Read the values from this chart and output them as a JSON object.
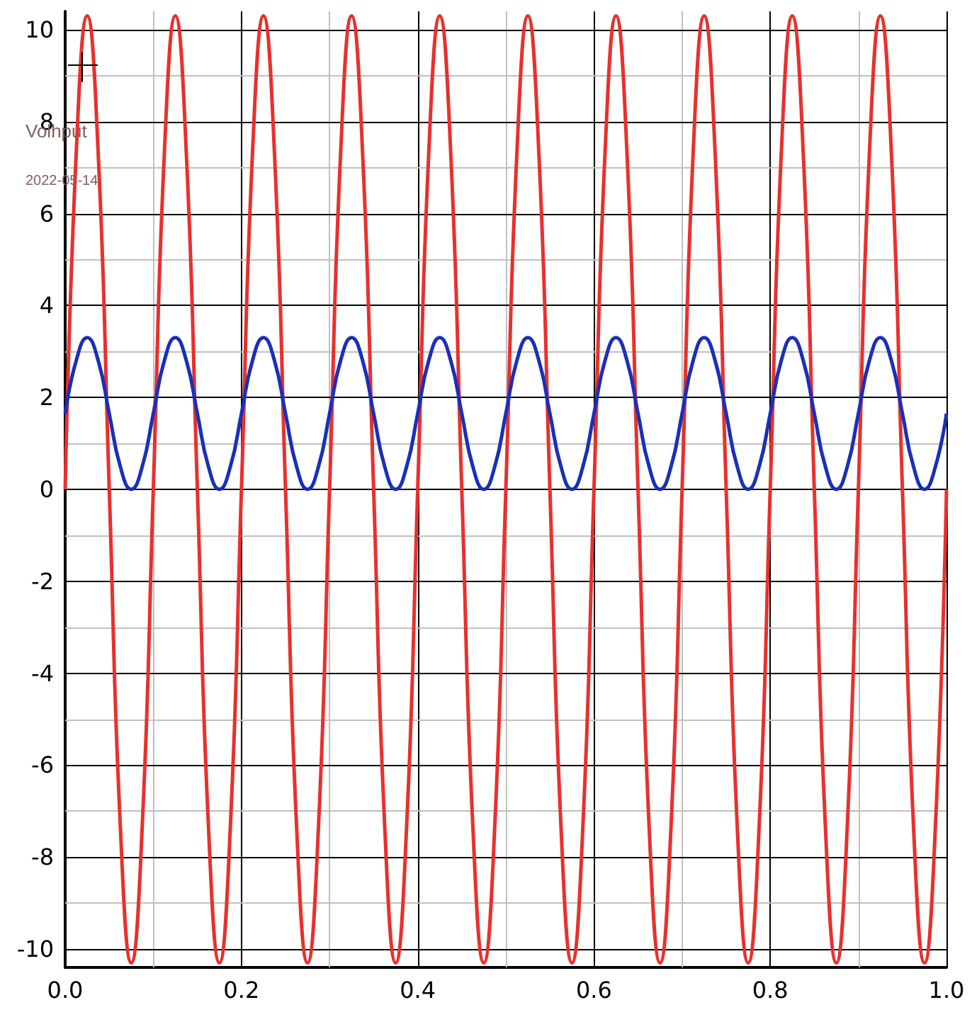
{
  "chart_data": {
    "type": "line",
    "annotations": [
      "Volhput",
      "2022-05-14"
    ],
    "x": [
      0,
      0.0125,
      0.025,
      0.0375,
      0.05,
      0.0625,
      0.075,
      0.0875,
      0.1,
      0.1125,
      0.125,
      0.1375,
      0.15,
      0.1625,
      0.175,
      0.1875,
      0.2,
      0.2125,
      0.225,
      0.2375,
      0.25,
      0.2625,
      0.275,
      0.2875,
      0.3,
      0.3125,
      0.325,
      0.3375,
      0.35,
      0.3625,
      0.375,
      0.3875,
      0.4,
      0.4125,
      0.425,
      0.4375,
      0.45,
      0.4625,
      0.475,
      0.4875,
      0.5,
      0.5125,
      0.525,
      0.5375,
      0.55,
      0.5625,
      0.575,
      0.5875,
      0.6,
      0.6125,
      0.625,
      0.6375,
      0.65,
      0.6625,
      0.675,
      0.6875,
      0.7,
      0.7125,
      0.725,
      0.7375,
      0.75,
      0.7625,
      0.775,
      0.7875,
      0.8,
      0.8125,
      0.825,
      0.8375,
      0.85,
      0.8625,
      0.875,
      0.8875,
      0.9,
      0.9125,
      0.925,
      0.9375,
      0.95,
      0.9625,
      0.975,
      0.9875,
      1
    ],
    "series": [
      {
        "color": "#e8302e",
        "values": [
          0,
          7.3,
          10.3,
          7.3,
          0,
          -7.3,
          -10.3,
          -7.3,
          0,
          7.3,
          10.3,
          7.3,
          0,
          -7.3,
          -10.3,
          -7.3,
          0,
          7.3,
          10.3,
          7.3,
          0,
          -7.3,
          -10.3,
          -7.3,
          0,
          7.3,
          10.3,
          7.3,
          0,
          -7.3,
          -10.3,
          -7.3,
          0,
          7.3,
          10.3,
          7.3,
          0,
          -7.3,
          -10.3,
          -7.3,
          0,
          7.3,
          10.3,
          7.3,
          0,
          -7.3,
          -10.3,
          -7.3,
          0,
          7.3,
          10.3,
          7.3,
          0,
          -7.3,
          -10.3,
          -7.3,
          0,
          7.3,
          10.3,
          7.3,
          0,
          -7.3,
          -10.3,
          -7.3,
          0,
          7.3,
          10.3,
          7.3,
          0,
          -7.3,
          -10.3,
          -7.3,
          0,
          7.3,
          10.3,
          7.3,
          0,
          -7.3,
          -10.3,
          -7.3,
          0
        ]
      },
      {
        "color": "#1a2fb8",
        "values": [
          1.65,
          2.8,
          3.3,
          2.8,
          1.65,
          0.5,
          0,
          0.5,
          1.65,
          2.8,
          3.3,
          2.8,
          1.65,
          0.5,
          0,
          0.5,
          1.65,
          2.8,
          3.3,
          2.8,
          1.65,
          0.5,
          0,
          0.5,
          1.65,
          2.8,
          3.3,
          2.8,
          1.65,
          0.5,
          0,
          0.5,
          1.65,
          2.8,
          3.3,
          2.8,
          1.65,
          0.5,
          0,
          0.5,
          1.65,
          2.8,
          3.3,
          2.8,
          1.65,
          0.5,
          0,
          0.5,
          1.65,
          2.8,
          3.3,
          2.8,
          1.65,
          0.5,
          0,
          0.5,
          1.65,
          2.8,
          3.3,
          2.8,
          1.65,
          0.5,
          0,
          0.5,
          1.65,
          2.8,
          3.3,
          2.8,
          1.65,
          0.5,
          0,
          0.5,
          1.65,
          2.8,
          3.3,
          2.8,
          1.65,
          0.5,
          0,
          0.5,
          1.65
        ]
      }
    ],
    "xlim": [
      0,
      1
    ],
    "xticks": [
      {
        "value": 0,
        "label": "0.0"
      },
      {
        "value": 0.1,
        "label": null
      },
      {
        "value": 0.2,
        "label": "0.2"
      },
      {
        "value": 0.3,
        "label": null
      },
      {
        "value": 0.4,
        "label": "0.4"
      },
      {
        "value": 0.5,
        "label": null
      },
      {
        "value": 0.6,
        "label": "0.6"
      },
      {
        "value": 0.7,
        "label": null
      },
      {
        "value": 0.8,
        "label": "0.8"
      },
      {
        "value": 0.9,
        "label": null
      },
      {
        "value": 1,
        "label": "1.0"
      }
    ],
    "ylim": [
      -10.4,
      10.4
    ],
    "yticks": [
      -10,
      {
        "value": -9,
        "label": null
      },
      -8,
      {
        "value": -7,
        "label": null
      },
      -6,
      {
        "value": -5,
        "label": null
      },
      -4,
      {
        "value": -3,
        "label": null
      },
      -2,
      {
        "value": -1,
        "label": null
      },
      0,
      {
        "value": 1,
        "label": null
      },
      2,
      {
        "value": 3,
        "label": null
      },
      4,
      {
        "value": 5,
        "label": null
      },
      6,
      {
        "value": 7,
        "label": null
      },
      8,
      {
        "value": 9,
        "label": null
      },
      10
    ],
    "grid": true,
    "marker": "none",
    "line_style": "solid"
  }
}
